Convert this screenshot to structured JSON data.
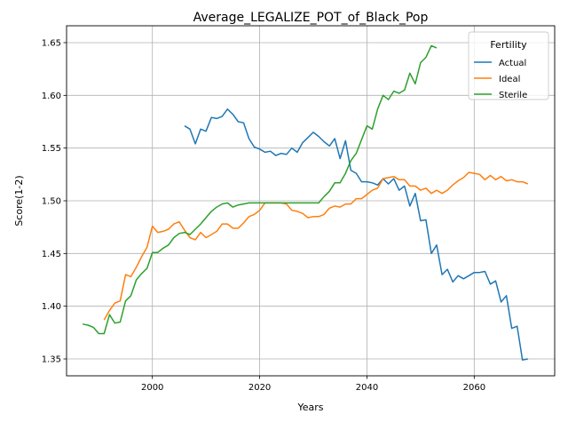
{
  "chart_data": {
    "type": "line",
    "title": "Average_LEGALIZE_POT_of_Black_Pop",
    "xlabel": "Years",
    "ylabel": "Score(1-2)",
    "xlim": [
      1984,
      2075
    ],
    "ylim": [
      1.334,
      1.666
    ],
    "x_ticks": [
      2000,
      2020,
      2040,
      2060
    ],
    "y_ticks": [
      1.35,
      1.4,
      1.45,
      1.5,
      1.55,
      1.6,
      1.65
    ],
    "grid": true,
    "legend": {
      "title": "Fertility",
      "placement": "top-right"
    },
    "series": [
      {
        "name": "Actual",
        "color": "#1f77b4",
        "x": [
          2006,
          2007,
          2008,
          2009,
          2010,
          2011,
          2012,
          2013,
          2014,
          2015,
          2016,
          2017,
          2018,
          2019,
          2020,
          2021,
          2022,
          2023,
          2024,
          2025,
          2026,
          2027,
          2028,
          2029,
          2030,
          2031,
          2032,
          2033,
          2034,
          2035,
          2036,
          2037,
          2038,
          2039,
          2040,
          2041,
          2042,
          2043,
          2044,
          2045,
          2046,
          2047,
          2048,
          2049,
          2050,
          2051,
          2052,
          2053,
          2054,
          2055,
          2056,
          2057,
          2058,
          2059,
          2060,
          2061,
          2062,
          2063,
          2064,
          2065,
          2066,
          2067,
          2068,
          2069,
          2070
        ],
        "y": [
          1.571,
          1.568,
          1.554,
          1.568,
          1.566,
          1.579,
          1.578,
          1.58,
          1.587,
          1.582,
          1.575,
          1.574,
          1.559,
          1.551,
          1.549,
          1.546,
          1.547,
          1.543,
          1.545,
          1.544,
          1.55,
          1.546,
          1.555,
          1.56,
          1.565,
          1.561,
          1.556,
          1.552,
          1.559,
          1.54,
          1.557,
          1.529,
          1.526,
          1.518,
          1.518,
          1.517,
          1.515,
          1.521,
          1.516,
          1.521,
          1.51,
          1.514,
          1.495,
          1.507,
          1.481,
          1.482,
          1.45,
          1.458,
          1.43,
          1.435,
          1.423,
          1.429,
          1.426,
          1.429,
          1.432,
          1.432,
          1.433,
          1.421,
          1.424,
          1.404,
          1.41,
          1.379,
          1.381,
          1.349,
          1.35
        ]
      },
      {
        "name": "Ideal",
        "color": "#ff7f0e",
        "x": [
          1991,
          1992,
          1993,
          1994,
          1995,
          1996,
          1997,
          1998,
          1999,
          2000,
          2001,
          2002,
          2003,
          2004,
          2005,
          2006,
          2007,
          2008,
          2009,
          2010,
          2011,
          2012,
          2013,
          2014,
          2015,
          2016,
          2017,
          2018,
          2019,
          2020,
          2021,
          2022,
          2023,
          2024,
          2025,
          2026,
          2027,
          2028,
          2029,
          2030,
          2031,
          2032,
          2033,
          2034,
          2035,
          2036,
          2037,
          2038,
          2039,
          2040,
          2041,
          2042,
          2043,
          2044,
          2045,
          2046,
          2047,
          2048,
          2049,
          2050,
          2051,
          2052,
          2053,
          2054,
          2055,
          2056,
          2057,
          2058,
          2059,
          2060,
          2061,
          2062,
          2063,
          2064,
          2065,
          2066,
          2067,
          2068,
          2069,
          2070
        ],
        "y": [
          1.387,
          1.396,
          1.403,
          1.405,
          1.43,
          1.428,
          1.437,
          1.447,
          1.456,
          1.476,
          1.47,
          1.471,
          1.473,
          1.478,
          1.48,
          1.472,
          1.465,
          1.463,
          1.47,
          1.465,
          1.468,
          1.471,
          1.478,
          1.478,
          1.474,
          1.474,
          1.479,
          1.485,
          1.487,
          1.491,
          1.498,
          1.498,
          1.498,
          1.498,
          1.497,
          1.491,
          1.49,
          1.488,
          1.484,
          1.485,
          1.485,
          1.487,
          1.493,
          1.495,
          1.494,
          1.497,
          1.497,
          1.502,
          1.502,
          1.506,
          1.51,
          1.512,
          1.521,
          1.522,
          1.523,
          1.52,
          1.52,
          1.514,
          1.514,
          1.51,
          1.512,
          1.507,
          1.51,
          1.507,
          1.51,
          1.515,
          1.519,
          1.522,
          1.527,
          1.526,
          1.525,
          1.52,
          1.524,
          1.52,
          1.523,
          1.519,
          1.52,
          1.518,
          1.518,
          1.516
        ]
      },
      {
        "name": "Sterile",
        "color": "#2ca02c",
        "x": [
          1987,
          1988,
          1989,
          1990,
          1991,
          1992,
          1993,
          1994,
          1995,
          1996,
          1997,
          1998,
          1999,
          2000,
          2001,
          2002,
          2003,
          2004,
          2005,
          2006,
          2007,
          2008,
          2009,
          2010,
          2011,
          2012,
          2013,
          2014,
          2015,
          2016,
          2017,
          2018,
          2019,
          2020,
          2021,
          2022,
          2023,
          2024,
          2025,
          2026,
          2027,
          2028,
          2029,
          2030,
          2031,
          2032,
          2033,
          2034,
          2035,
          2036,
          2037,
          2038,
          2039,
          2040,
          2041,
          2042,
          2043,
          2044,
          2045,
          2046,
          2047,
          2048,
          2049,
          2050,
          2051,
          2052,
          2053
        ],
        "y": [
          1.383,
          1.382,
          1.38,
          1.374,
          1.374,
          1.392,
          1.384,
          1.385,
          1.405,
          1.41,
          1.425,
          1.431,
          1.436,
          1.451,
          1.451,
          1.455,
          1.458,
          1.465,
          1.469,
          1.47,
          1.468,
          1.473,
          1.478,
          1.484,
          1.49,
          1.494,
          1.497,
          1.498,
          1.494,
          1.496,
          1.497,
          1.498,
          1.498,
          1.498,
          1.498,
          1.498,
          1.498,
          1.498,
          1.498,
          1.498,
          1.498,
          1.498,
          1.498,
          1.498,
          1.498,
          1.504,
          1.509,
          1.517,
          1.517,
          1.526,
          1.538,
          1.545,
          1.558,
          1.571,
          1.568,
          1.587,
          1.6,
          1.596,
          1.604,
          1.602,
          1.605,
          1.621,
          1.611,
          1.631,
          1.636,
          1.647,
          1.645
        ]
      }
    ]
  }
}
